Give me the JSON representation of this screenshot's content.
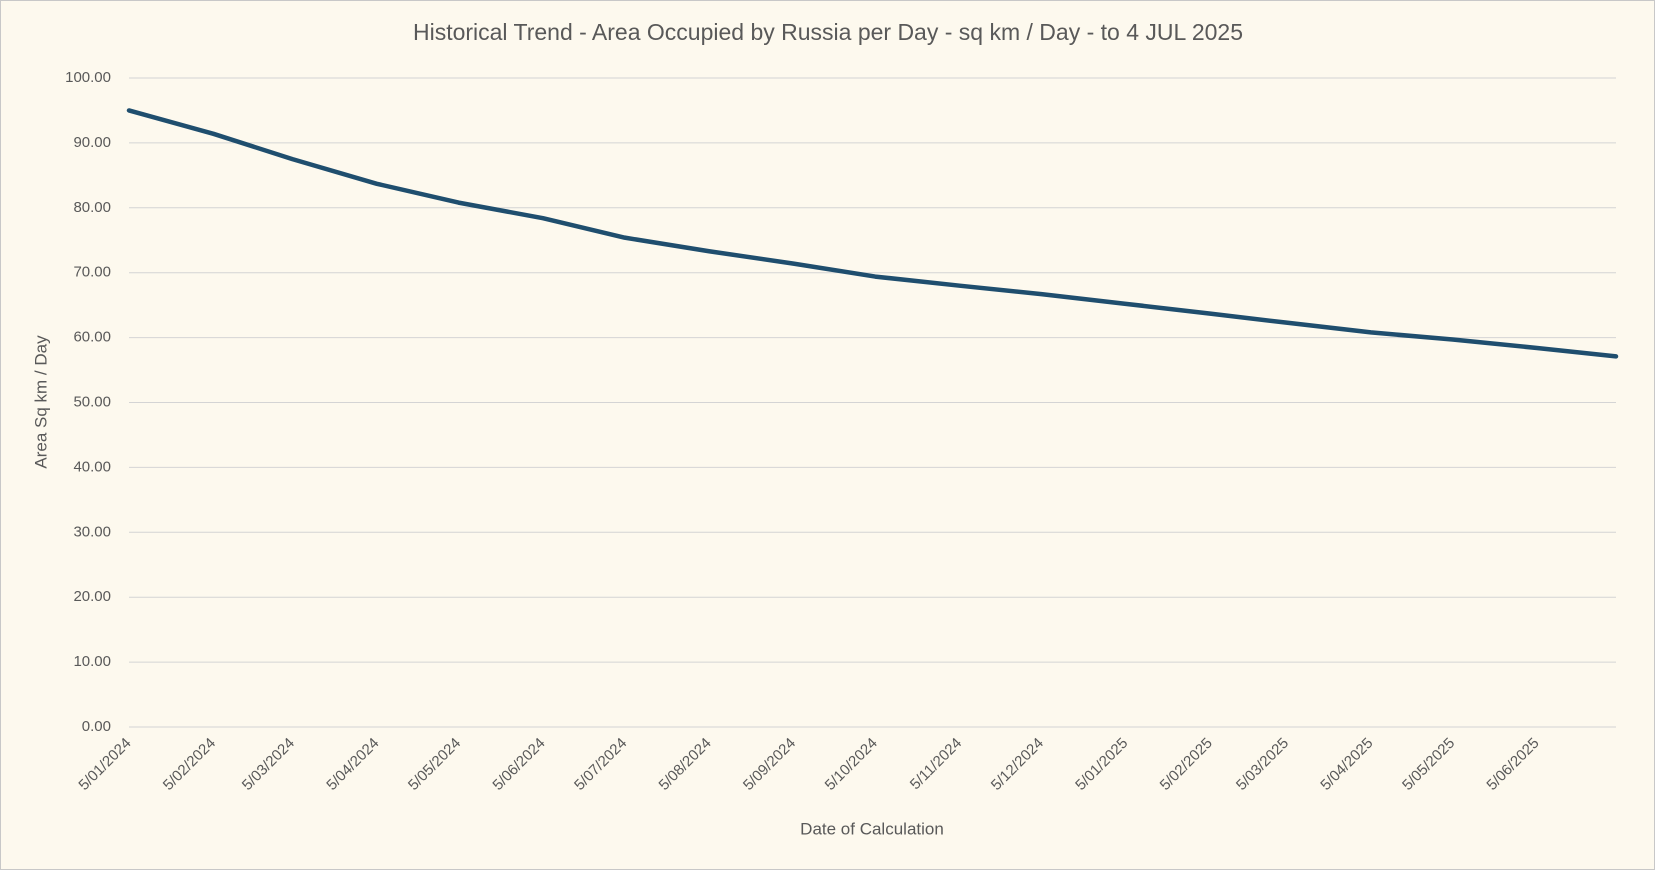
{
  "chart_data": {
    "type": "line",
    "title": "Historical Trend - Area Occupied by Russia per Day - sq km / Day - to 4 JUL 2025",
    "x_label": "Date of Calculation",
    "y_label": "Area Sq km / Day",
    "x": [
      "2024-01-05",
      "2024-02-05",
      "2024-03-05",
      "2024-04-05",
      "2024-05-05",
      "2024-06-05",
      "2024-07-05",
      "2024-08-05",
      "2024-09-05",
      "2024-10-05",
      "2024-11-05",
      "2024-12-05",
      "2025-01-05",
      "2025-02-05",
      "2025-03-05",
      "2025-04-05",
      "2025-05-05",
      "2025-06-05",
      "2025-07-04"
    ],
    "series": [
      {
        "name": "Area Sq km / Day",
        "color": "#1f4e6e",
        "values": [
          95.0,
          91.4,
          87.5,
          83.7,
          80.8,
          78.4,
          75.4,
          73.3,
          71.4,
          69.4,
          68.0,
          66.7,
          65.2,
          63.7,
          62.3,
          60.8,
          59.7,
          58.4,
          57.1
        ]
      }
    ],
    "xlim": [
      "2024-01-05",
      "2025-07-04"
    ],
    "xticks": [
      {
        "value": "2024-01-05",
        "label": "5/01/2024"
      },
      {
        "value": "2024-02-05",
        "label": "5/02/2024"
      },
      {
        "value": "2024-03-05",
        "label": "5/03/2024"
      },
      {
        "value": "2024-04-05",
        "label": "5/04/2024"
      },
      {
        "value": "2024-05-05",
        "label": "5/05/2024"
      },
      {
        "value": "2024-06-05",
        "label": "5/06/2024"
      },
      {
        "value": "2024-07-05",
        "label": "5/07/2024"
      },
      {
        "value": "2024-08-05",
        "label": "5/08/2024"
      },
      {
        "value": "2024-09-05",
        "label": "5/09/2024"
      },
      {
        "value": "2024-10-05",
        "label": "5/10/2024"
      },
      {
        "value": "2024-11-05",
        "label": "5/11/2024"
      },
      {
        "value": "2024-12-05",
        "label": "5/12/2024"
      },
      {
        "value": "2025-01-05",
        "label": "5/01/2025"
      },
      {
        "value": "2025-02-05",
        "label": "5/02/2025"
      },
      {
        "value": "2025-03-05",
        "label": "5/03/2025"
      },
      {
        "value": "2025-04-05",
        "label": "5/04/2025"
      },
      {
        "value": "2025-05-05",
        "label": "5/05/2025"
      },
      {
        "value": "2025-06-05",
        "label": "5/06/2025"
      }
    ],
    "ylim": [
      0,
      100
    ],
    "yticks": [
      {
        "value": 0,
        "label": "0.00"
      },
      {
        "value": 10,
        "label": "10.00"
      },
      {
        "value": 20,
        "label": "20.00"
      },
      {
        "value": 30,
        "label": "30.00"
      },
      {
        "value": 40,
        "label": "40.00"
      },
      {
        "value": 50,
        "label": "50.00"
      },
      {
        "value": 60,
        "label": "60.00"
      },
      {
        "value": 70,
        "label": "70.00"
      },
      {
        "value": 80,
        "label": "80.00"
      },
      {
        "value": 90,
        "label": "90.00"
      },
      {
        "value": 100,
        "label": "100.00"
      }
    ],
    "grid": true
  }
}
